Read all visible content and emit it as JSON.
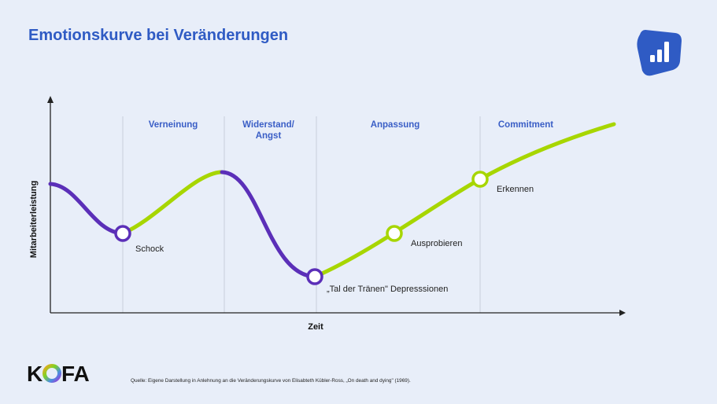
{
  "title": "Emotionskurve bei Veränderungen",
  "axes": {
    "y_label": "Mitarbeiterleistung",
    "x_label": "Zeit"
  },
  "phases": [
    {
      "label": "Verneinung"
    },
    {
      "label": "Widerstand/\nAngst"
    },
    {
      "label": "Anpassung"
    },
    {
      "label": "Commitment"
    }
  ],
  "milestones": [
    {
      "label": "Schock",
      "color": "#5b2fb8"
    },
    {
      "label": "„Tal der Tränen\" Depresssionen",
      "color": "#5b2fb8"
    },
    {
      "label": "Ausprobieren",
      "color": "#a7d600"
    },
    {
      "label": "Erkennen",
      "color": "#a7d600"
    }
  ],
  "colors": {
    "title": "#2f5bc4",
    "purple": "#5b2fb8",
    "green": "#a7d600",
    "badge": "#2f5bc4",
    "background": "#e8eef9"
  },
  "icons": {
    "badge": "bar-chart-icon"
  },
  "logo": {
    "text": "KOFA"
  },
  "source": "Quelle: Eigene Darstellung in Anlehnung an die Veränderungskurve von Elisabteth Kübler-Ross, „On death and dying\" (1969)."
}
